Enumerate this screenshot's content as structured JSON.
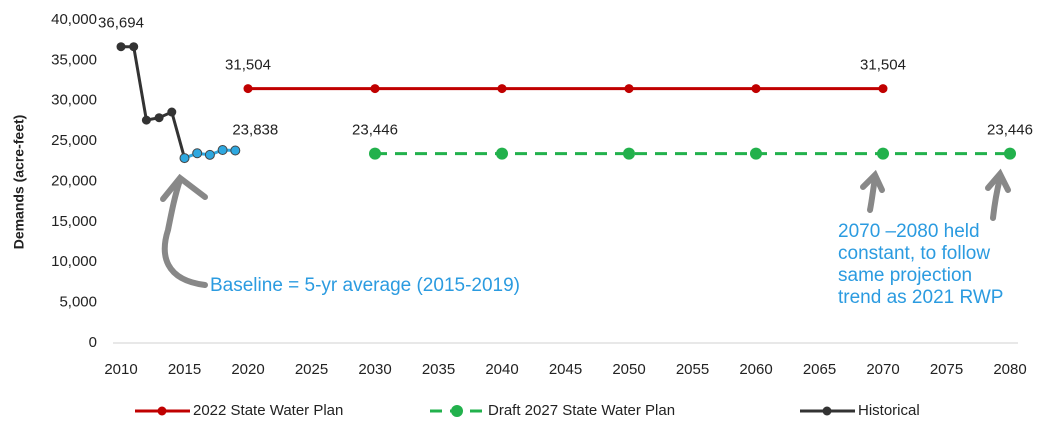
{
  "chart_data": {
    "type": "line",
    "y_label": "Demands (acre-feet)",
    "xlim": [
      2010,
      2080
    ],
    "xticks": [
      2010,
      2015,
      2020,
      2025,
      2030,
      2035,
      2040,
      2045,
      2050,
      2055,
      2060,
      2065,
      2070,
      2075,
      2080
    ],
    "ylim": [
      0,
      40000
    ],
    "yticks": [
      0,
      {
        "value": 5000,
        "label": "5,000"
      },
      {
        "value": 10000,
        "label": "10,000"
      },
      {
        "value": 15000,
        "label": "15,000"
      },
      {
        "value": 20000,
        "label": "20,000"
      },
      {
        "value": 25000,
        "label": "25,000"
      },
      {
        "value": 30000,
        "label": "30,000"
      },
      {
        "value": 35000,
        "label": "35,000"
      },
      {
        "value": 40000,
        "label": "40,000"
      }
    ],
    "grid": false,
    "legend": "bottom",
    "series": [
      {
        "name": "2022 State Water Plan",
        "color": "#c00000",
        "dashed": false,
        "x": [
          2020,
          2030,
          2040,
          2050,
          2060,
          2070
        ],
        "values": [
          31504,
          31504,
          31504,
          31504,
          31504,
          31504
        ],
        "value_labels": [
          "31,504",
          null,
          null,
          null,
          null,
          "31,504"
        ]
      },
      {
        "name": "Draft 2027 State Water Plan",
        "color": "#22b14c",
        "dashed": true,
        "x": [
          2030,
          2040,
          2050,
          2060,
          2070,
          2080
        ],
        "values": [
          23446,
          23446,
          23446,
          23446,
          23446,
          23446
        ],
        "value_labels": [
          "23,446",
          null,
          null,
          null,
          null,
          "23,446"
        ]
      },
      {
        "name": "Historical",
        "color": "#333333",
        "dashed": false,
        "x": [
          2010,
          2011,
          2012,
          2013,
          2014,
          2015
        ],
        "values": [
          36694,
          36694,
          27600,
          27900,
          28600,
          22900
        ],
        "value_labels": [
          "36,694",
          null,
          null,
          null,
          null,
          null
        ]
      },
      {
        "color": "#2ea8e0",
        "dashed": false,
        "x": [
          2015,
          2016,
          2017,
          2018,
          2019
        ],
        "values": [
          22900,
          23500,
          23300,
          23900,
          23838
        ],
        "value_labels": [
          null,
          null,
          null,
          null,
          "23,838"
        ]
      }
    ],
    "annotations": [
      "Baseline = 5-yr average (2015-2019)",
      [
        "2070 –2080 held",
        "constant, to follow",
        "same projection",
        "trend as 2021 RWP"
      ]
    ]
  }
}
